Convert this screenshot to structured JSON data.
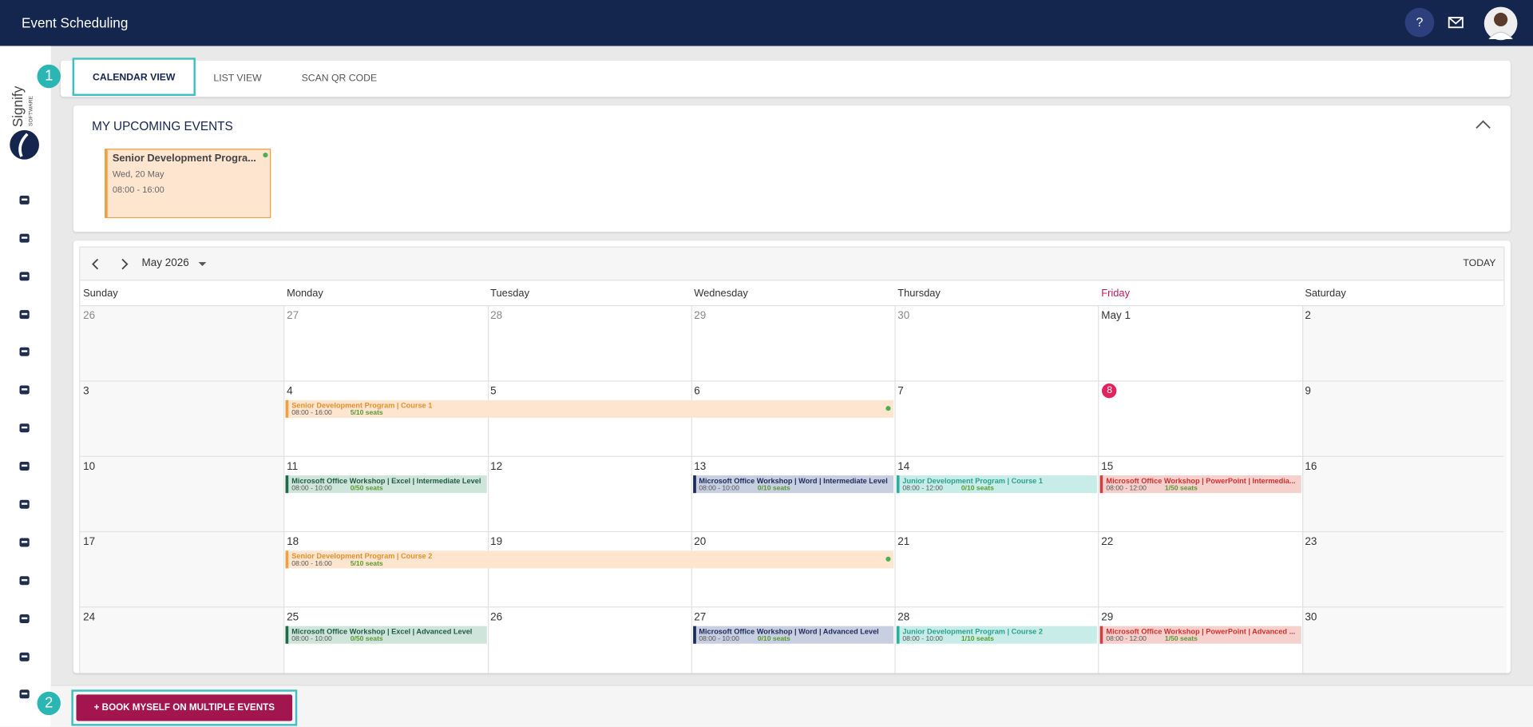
{
  "header": {
    "title": "Event Scheduling",
    "help": "?"
  },
  "logo": {
    "name": "Signify",
    "tagline": "SOFTWARE"
  },
  "callouts": [
    "1",
    "2"
  ],
  "tabs": [
    "CALENDAR VIEW",
    "LIST VIEW",
    "SCAN QR CODE"
  ],
  "upcoming": {
    "title": "MY UPCOMING EVENTS",
    "events": [
      {
        "title": "Senior Development Progra...",
        "date": "Wed, 20 May",
        "time": "08:00 - 16:00"
      }
    ]
  },
  "calendar": {
    "month": "May 2026",
    "today_button": "TODAY",
    "today": "8",
    "weekdays": [
      "Sunday",
      "Monday",
      "Tuesday",
      "Wednesday",
      "Thursday",
      "Friday",
      "Saturday"
    ],
    "weeks": [
      {
        "days": [
          "26",
          "27",
          "28",
          "29",
          "30",
          "May 1",
          "2"
        ],
        "events": []
      },
      {
        "days": [
          "3",
          "4",
          "5",
          "6",
          "7",
          "8",
          "9"
        ],
        "events": [
          {
            "title": "Senior Development Program | Course 1",
            "time": "08:00 - 16:00",
            "seats": "5/10 seats",
            "color": "orange",
            "start": "4",
            "end": "6"
          }
        ]
      },
      {
        "days": [
          "10",
          "11",
          "12",
          "13",
          "14",
          "15",
          "16"
        ],
        "events": [
          {
            "title": "Microsoft Office Workshop | Excel | Intermediate Level",
            "time": "08:00 - 10:00",
            "seats": "0/50 seats",
            "color": "green",
            "start": "11",
            "end": "11"
          },
          {
            "title": "Microsoft Office Workshop | Word | Intermediate Level",
            "time": "08:00 - 10:00",
            "seats": "0/10 seats",
            "color": "navy",
            "start": "13",
            "end": "13"
          },
          {
            "title": "Junior Development Program | Course 1",
            "time": "08:00 - 12:00",
            "seats": "0/10 seats",
            "color": "teal",
            "start": "14",
            "end": "14"
          },
          {
            "title": "Microsoft Office Workshop | PowerPoint | Intermedia...",
            "time": "08:00 - 12:00",
            "seats": "1/50 seats",
            "color": "red",
            "start": "15",
            "end": "15"
          }
        ]
      },
      {
        "days": [
          "17",
          "18",
          "19",
          "20",
          "21",
          "22",
          "23"
        ],
        "events": [
          {
            "title": "Senior Development Program | Course 2",
            "time": "08:00 - 16:00",
            "seats": "5/10 seats",
            "color": "orange",
            "start": "18",
            "end": "20"
          }
        ]
      },
      {
        "days": [
          "24",
          "25",
          "26",
          "27",
          "28",
          "29",
          "30"
        ],
        "events": [
          {
            "title": "Microsoft Office Workshop | Excel | Advanced Level",
            "time": "08:00 - 10:00",
            "seats": "0/50 seats",
            "color": "green",
            "start": "25",
            "end": "25"
          },
          {
            "title": "Microsoft Office Workshop | Word | Advanced Level",
            "time": "08:00 - 10:00",
            "seats": "0/10 seats",
            "color": "navy",
            "start": "27",
            "end": "27"
          },
          {
            "title": "Junior Development Program | Course 2",
            "time": "08:00 - 10:00",
            "seats": "1/10 seats",
            "color": "teal",
            "start": "28",
            "end": "28"
          },
          {
            "title": "Microsoft Office Workshop | PowerPoint | Advanced ...",
            "time": "08:00 - 12:00",
            "seats": "1/50 seats",
            "color": "red",
            "start": "29",
            "end": "29"
          }
        ]
      }
    ]
  },
  "actions": {
    "book_multiple": "+ BOOK MYSELF ON MULTIPLE EVENTS"
  }
}
